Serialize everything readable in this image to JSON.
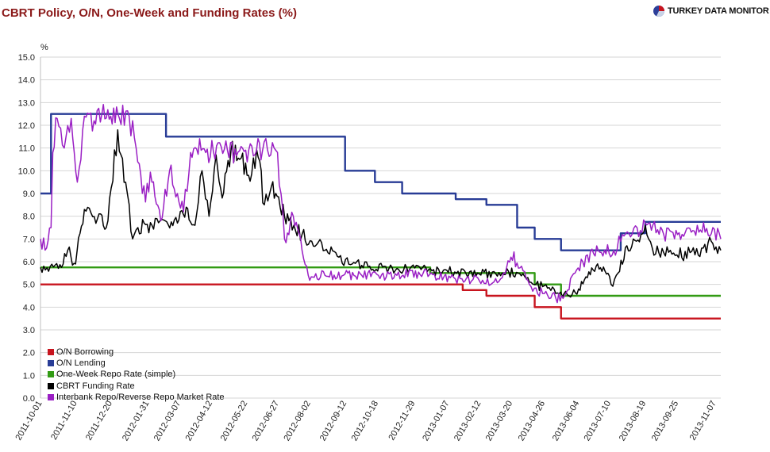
{
  "header": {
    "title": "CBRT Policy, O/N, One-Week and Funding Rates (%)",
    "brand": "TURKEY DATA MONITOR"
  },
  "chart_data": {
    "type": "line",
    "title": "CBRT Policy, O/N, One-Week and Funding Rates (%)",
    "ylabel": "%",
    "ylim": [
      0,
      15
    ],
    "yticks": [
      "15.0",
      "14.0",
      "13.0",
      "12.0",
      "11.0",
      "10.0",
      "9.0",
      "8.0",
      "7.0",
      "6.0",
      "5.0",
      "4.0",
      "3.0",
      "2.0",
      "1.0",
      "0.0"
    ],
    "xlim": [
      "2011-10-01",
      "2013-11-14"
    ],
    "xticks": [
      "2011-10-01",
      "2011-11-10",
      "2011-12-20",
      "2012-01-31",
      "2012-03-07",
      "2012-04-12",
      "2012-05-22",
      "2012-06-27",
      "2012-08-02",
      "2012-09-12",
      "2012-10-18",
      "2012-11-29",
      "2013-01-07",
      "2013-02-12",
      "2013-03-20",
      "2013-04-26",
      "2013-06-04",
      "2013-07-10",
      "2013-08-19",
      "2013-09-25",
      "2013-11-07"
    ],
    "grid": true,
    "legend": "bottom-left",
    "series": [
      {
        "name": "O/N Borrowing",
        "color": "#c8141e",
        "step": true,
        "noisy": false,
        "width": 2.4,
        "points": [
          [
            "2011-10-01",
            5.0
          ],
          [
            "2013-01-24",
            4.75
          ],
          [
            "2013-02-20",
            4.5
          ],
          [
            "2013-04-16",
            4.0
          ],
          [
            "2013-05-16",
            3.5
          ],
          [
            "2013-11-14",
            3.5
          ]
        ]
      },
      {
        "name": "O/N Lending",
        "color": "#283c96",
        "step": true,
        "noisy": false,
        "width": 2.4,
        "points": [
          [
            "2011-10-01",
            9.0
          ],
          [
            "2011-10-13",
            12.5
          ],
          [
            "2012-02-21",
            11.5
          ],
          [
            "2012-09-12",
            10.0
          ],
          [
            "2012-10-16",
            9.5
          ],
          [
            "2012-11-16",
            9.0
          ],
          [
            "2013-01-16",
            8.75
          ],
          [
            "2013-02-20",
            8.5
          ],
          [
            "2013-03-27",
            7.5
          ],
          [
            "2013-04-16",
            7.0
          ],
          [
            "2013-05-16",
            6.5
          ],
          [
            "2013-07-23",
            7.25
          ],
          [
            "2013-08-20",
            7.75
          ],
          [
            "2013-11-14",
            7.75
          ]
        ]
      },
      {
        "name": "One-Week Repo Rate (simple)",
        "color": "#329b14",
        "step": true,
        "noisy": false,
        "width": 2.4,
        "points": [
          [
            "2011-10-01",
            5.75
          ],
          [
            "2012-12-18",
            5.5
          ],
          [
            "2013-04-16",
            5.0
          ],
          [
            "2013-05-16",
            4.5
          ],
          [
            "2013-11-14",
            4.5
          ]
        ]
      },
      {
        "name": "CBRT Funding Rate",
        "color": "#000000",
        "step": false,
        "noisy": true,
        "width": 1.5,
        "points": [
          [
            "2011-10-01",
            5.75
          ],
          [
            "2011-10-25",
            5.75
          ],
          [
            "2011-11-01",
            6.5
          ],
          [
            "2011-11-10",
            5.9
          ],
          [
            "2011-11-20",
            8.3
          ],
          [
            "2011-12-05",
            7.9
          ],
          [
            "2011-12-15",
            7.5
          ],
          [
            "2011-12-28",
            11.8
          ],
          [
            "2012-01-06",
            9.5
          ],
          [
            "2012-01-14",
            7.0
          ],
          [
            "2012-01-20",
            7.5
          ],
          [
            "2012-02-05",
            7.6
          ],
          [
            "2012-02-20",
            7.8
          ],
          [
            "2012-03-05",
            7.7
          ],
          [
            "2012-03-15",
            8.4
          ],
          [
            "2012-03-25",
            7.6
          ],
          [
            "2012-04-02",
            10.0
          ],
          [
            "2012-04-10",
            8.0
          ],
          [
            "2012-04-18",
            10.7
          ],
          [
            "2012-04-25",
            8.8
          ],
          [
            "2012-05-05",
            10.9
          ],
          [
            "2012-05-15",
            10.5
          ],
          [
            "2012-05-25",
            9.8
          ],
          [
            "2012-06-05",
            10.6
          ],
          [
            "2012-06-12",
            8.5
          ],
          [
            "2012-06-20",
            9.3
          ],
          [
            "2012-06-30",
            8.4
          ],
          [
            "2012-07-10",
            7.8
          ],
          [
            "2012-07-25",
            7.2
          ],
          [
            "2012-08-05",
            6.9
          ],
          [
            "2012-08-20",
            6.5
          ],
          [
            "2012-09-05",
            6.2
          ],
          [
            "2012-09-20",
            5.9
          ],
          [
            "2012-10-10",
            5.8
          ],
          [
            "2012-11-01",
            5.7
          ],
          [
            "2012-11-25",
            5.7
          ],
          [
            "2012-12-20",
            5.6
          ],
          [
            "2013-01-15",
            5.55
          ],
          [
            "2013-02-10",
            5.5
          ],
          [
            "2013-03-10",
            5.5
          ],
          [
            "2013-03-28",
            5.5
          ],
          [
            "2013-04-10",
            5.1
          ],
          [
            "2013-04-25",
            4.9
          ],
          [
            "2013-05-10",
            4.6
          ],
          [
            "2013-05-25",
            4.5
          ],
          [
            "2013-06-05",
            4.8
          ],
          [
            "2013-06-15",
            5.3
          ],
          [
            "2013-06-25",
            5.8
          ],
          [
            "2013-07-05",
            5.6
          ],
          [
            "2013-07-12",
            5.0
          ],
          [
            "2013-07-20",
            5.5
          ],
          [
            "2013-07-30",
            6.7
          ],
          [
            "2013-08-10",
            6.9
          ],
          [
            "2013-08-20",
            7.6
          ],
          [
            "2013-08-28",
            6.6
          ],
          [
            "2013-09-10",
            6.4
          ],
          [
            "2013-09-25",
            6.3
          ],
          [
            "2013-10-10",
            6.4
          ],
          [
            "2013-10-25",
            6.6
          ],
          [
            "2013-11-05",
            6.8
          ],
          [
            "2013-11-14",
            6.5
          ]
        ]
      },
      {
        "name": "Interbank Repo/Reverse Repo Market Rate",
        "color": "#9a1fc4",
        "step": false,
        "noisy": true,
        "width": 1.5,
        "points": [
          [
            "2011-10-01",
            7.0
          ],
          [
            "2011-10-08",
            6.6
          ],
          [
            "2011-10-13",
            7.5
          ],
          [
            "2011-10-15",
            10.8
          ],
          [
            "2011-10-20",
            12.3
          ],
          [
            "2011-10-28",
            11.0
          ],
          [
            "2011-11-05",
            12.3
          ],
          [
            "2011-11-12",
            9.5
          ],
          [
            "2011-11-20",
            12.4
          ],
          [
            "2011-12-01",
            12.2
          ],
          [
            "2011-12-10",
            12.5
          ],
          [
            "2011-12-20",
            12.4
          ],
          [
            "2011-12-30",
            12.3
          ],
          [
            "2012-01-10",
            12.4
          ],
          [
            "2012-01-18",
            11.0
          ],
          [
            "2012-01-25",
            9.0
          ],
          [
            "2012-02-05",
            9.5
          ],
          [
            "2012-02-15",
            7.8
          ],
          [
            "2012-02-25",
            10.0
          ],
          [
            "2012-03-05",
            9.0
          ],
          [
            "2012-03-12",
            8.2
          ],
          [
            "2012-03-20",
            10.8
          ],
          [
            "2012-04-01",
            10.9
          ],
          [
            "2012-04-15",
            10.85
          ],
          [
            "2012-05-01",
            10.9
          ],
          [
            "2012-05-20",
            10.85
          ],
          [
            "2012-06-10",
            10.9
          ],
          [
            "2012-06-25",
            10.9
          ],
          [
            "2012-07-01",
            9.0
          ],
          [
            "2012-07-05",
            7.0
          ],
          [
            "2012-07-15",
            8.0
          ],
          [
            "2012-07-25",
            6.5
          ],
          [
            "2012-08-01",
            5.4
          ],
          [
            "2012-08-20",
            5.4
          ],
          [
            "2012-09-10",
            5.4
          ],
          [
            "2012-10-01",
            5.4
          ],
          [
            "2012-10-20",
            5.4
          ],
          [
            "2012-11-10",
            5.4
          ],
          [
            "2012-12-10",
            5.5
          ],
          [
            "2013-01-10",
            5.3
          ],
          [
            "2013-01-25",
            5.1
          ],
          [
            "2013-02-10",
            5.3
          ],
          [
            "2013-02-25",
            5.0
          ],
          [
            "2013-03-10",
            5.3
          ],
          [
            "2013-03-20",
            6.2
          ],
          [
            "2013-04-01",
            5.8
          ],
          [
            "2013-04-10",
            5.0
          ],
          [
            "2013-04-25",
            4.6
          ],
          [
            "2013-05-10",
            4.4
          ],
          [
            "2013-05-20",
            4.5
          ],
          [
            "2013-06-01",
            5.5
          ],
          [
            "2013-06-15",
            6.3
          ],
          [
            "2013-07-01",
            6.4
          ],
          [
            "2013-07-15",
            6.5
          ],
          [
            "2013-07-23",
            6.9
          ],
          [
            "2013-08-05",
            7.2
          ],
          [
            "2013-08-20",
            7.7
          ],
          [
            "2013-09-10",
            7.2
          ],
          [
            "2013-10-01",
            7.2
          ],
          [
            "2013-10-20",
            7.3
          ],
          [
            "2013-11-05",
            7.5
          ],
          [
            "2013-11-14",
            7.0
          ]
        ]
      }
    ]
  }
}
